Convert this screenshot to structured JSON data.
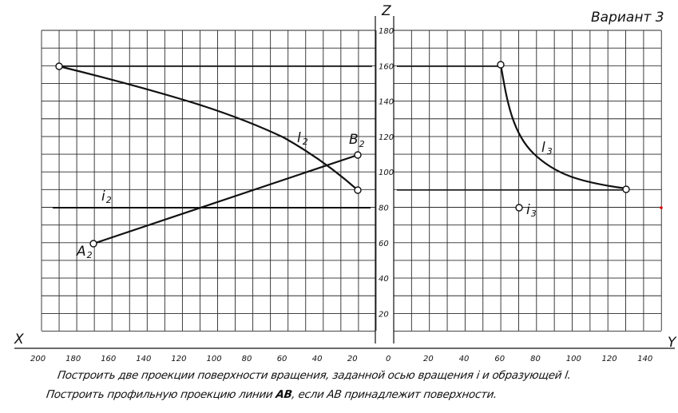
{
  "variant": "Вариант 3",
  "axes": {
    "z": "Z",
    "x": "X",
    "y": "Y"
  },
  "z_ticks": [
    "180",
    "160",
    "140",
    "120",
    "100",
    "80",
    "60",
    "40",
    "20"
  ],
  "x_ticks": [
    "200",
    "180",
    "160",
    "140",
    "120",
    "100",
    "80",
    "60",
    "40",
    "20"
  ],
  "zero": "0",
  "y_ticks": [
    "20",
    "40",
    "60",
    "80",
    "100",
    "120",
    "140"
  ],
  "labels": {
    "l2": "l",
    "l2_sub": "2",
    "B": "B",
    "B_sub": "2",
    "i2": "i",
    "i2_sub": "2",
    "A": "A",
    "A_sub": "2",
    "l3": "l",
    "l3_sub": "3",
    "i3": "i",
    "i3_sub": "3"
  },
  "task": {
    "line1": "Построить две проекции поверхности вращения, заданной осью вращения i и образующей l.",
    "line2_pre": "Построить профильную проекцию линии ",
    "line2_bold": "AB",
    "line2_post": ", если AB принадлежит поверхности."
  },
  "points": {
    "A2": {
      "x": 170,
      "z": 60
    },
    "B2": {
      "x": 20,
      "z": 110
    },
    "l2_start": {
      "x": 190,
      "z": 160
    },
    "l2_end": {
      "x": 20,
      "z": 90
    },
    "l3_start": {
      "y": 60,
      "z": 160
    },
    "l3_end": {
      "y": 130,
      "z": 90
    },
    "i3": {
      "y": 70,
      "z": 80
    }
  },
  "colors": {
    "grid": "#2a2a2a",
    "ink": "#111111",
    "marker": "#e00000"
  }
}
